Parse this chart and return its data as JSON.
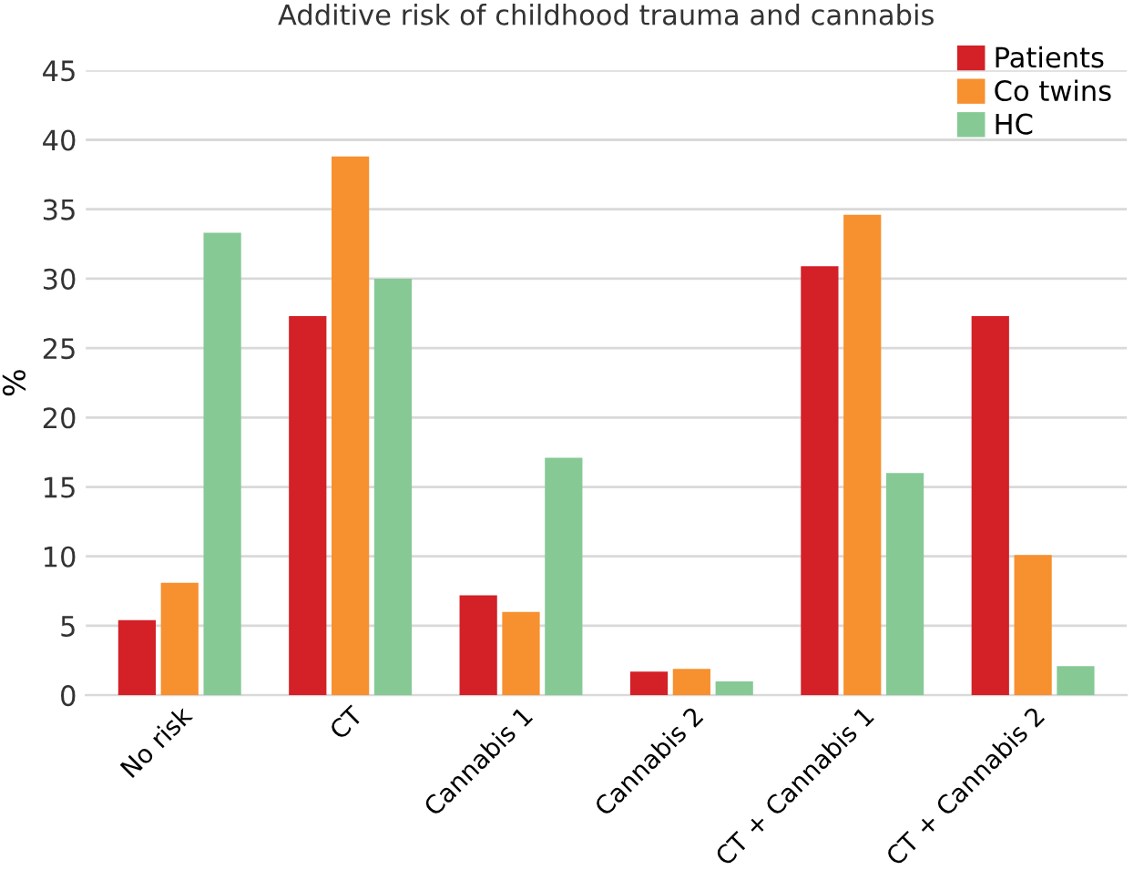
{
  "chart_data": {
    "type": "bar",
    "title": "Additive risk of childhood trauma and cannabis",
    "ylabel": "%",
    "categories": [
      "No risk",
      "CT",
      "Cannabis 1",
      "Cannabis 2",
      "CT + Cannabis 1",
      "CT + Cannabis 2"
    ],
    "series": [
      {
        "name": "Patients",
        "color": "#d42027",
        "values": [
          5.4,
          27.3,
          7.2,
          1.7,
          30.9,
          27.3
        ]
      },
      {
        "name": "Co twins",
        "color": "#f7902f",
        "values": [
          8.1,
          38.8,
          6.0,
          1.9,
          34.6,
          10.1
        ]
      },
      {
        "name": "HC",
        "color": "#86c995",
        "values": [
          33.3,
          30.0,
          17.1,
          1.0,
          16.0,
          2.1
        ]
      }
    ],
    "ylim": [
      0,
      45
    ],
    "yticks": [
      0,
      5,
      10,
      15,
      20,
      25,
      30,
      35,
      40,
      45
    ],
    "grid": "y",
    "legend": "top right"
  }
}
